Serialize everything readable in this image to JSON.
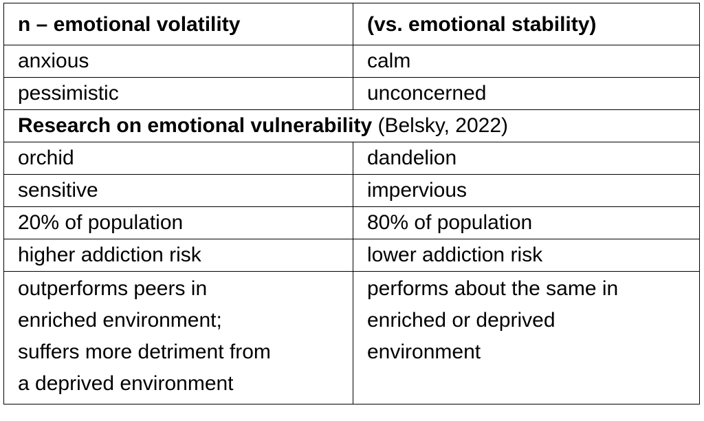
{
  "table": {
    "header": {
      "left": "n – emotional volatility",
      "right": "(vs. emotional stability)"
    },
    "rows_top": [
      {
        "left": "anxious",
        "right": "calm"
      },
      {
        "left": "pessimistic",
        "right": "unconcerned"
      }
    ],
    "section": {
      "bold": "Research on emotional vulnerability",
      "normal": " (Belsky, 2022)"
    },
    "rows_bottom": [
      {
        "left": "orchid",
        "right": "dandelion"
      },
      {
        "left": "sensitive",
        "right": "impervious"
      },
      {
        "left": "20% of population",
        "right": "80% of population"
      },
      {
        "left": "higher addiction risk",
        "right": "lower addiction risk"
      }
    ],
    "last_row": {
      "left_lines": [
        "outperforms peers in",
        "enriched environment;",
        "suffers more detriment from",
        "a deprived environment"
      ],
      "right_lines": [
        "performs about the same in",
        "enriched or deprived",
        "environment"
      ]
    }
  }
}
